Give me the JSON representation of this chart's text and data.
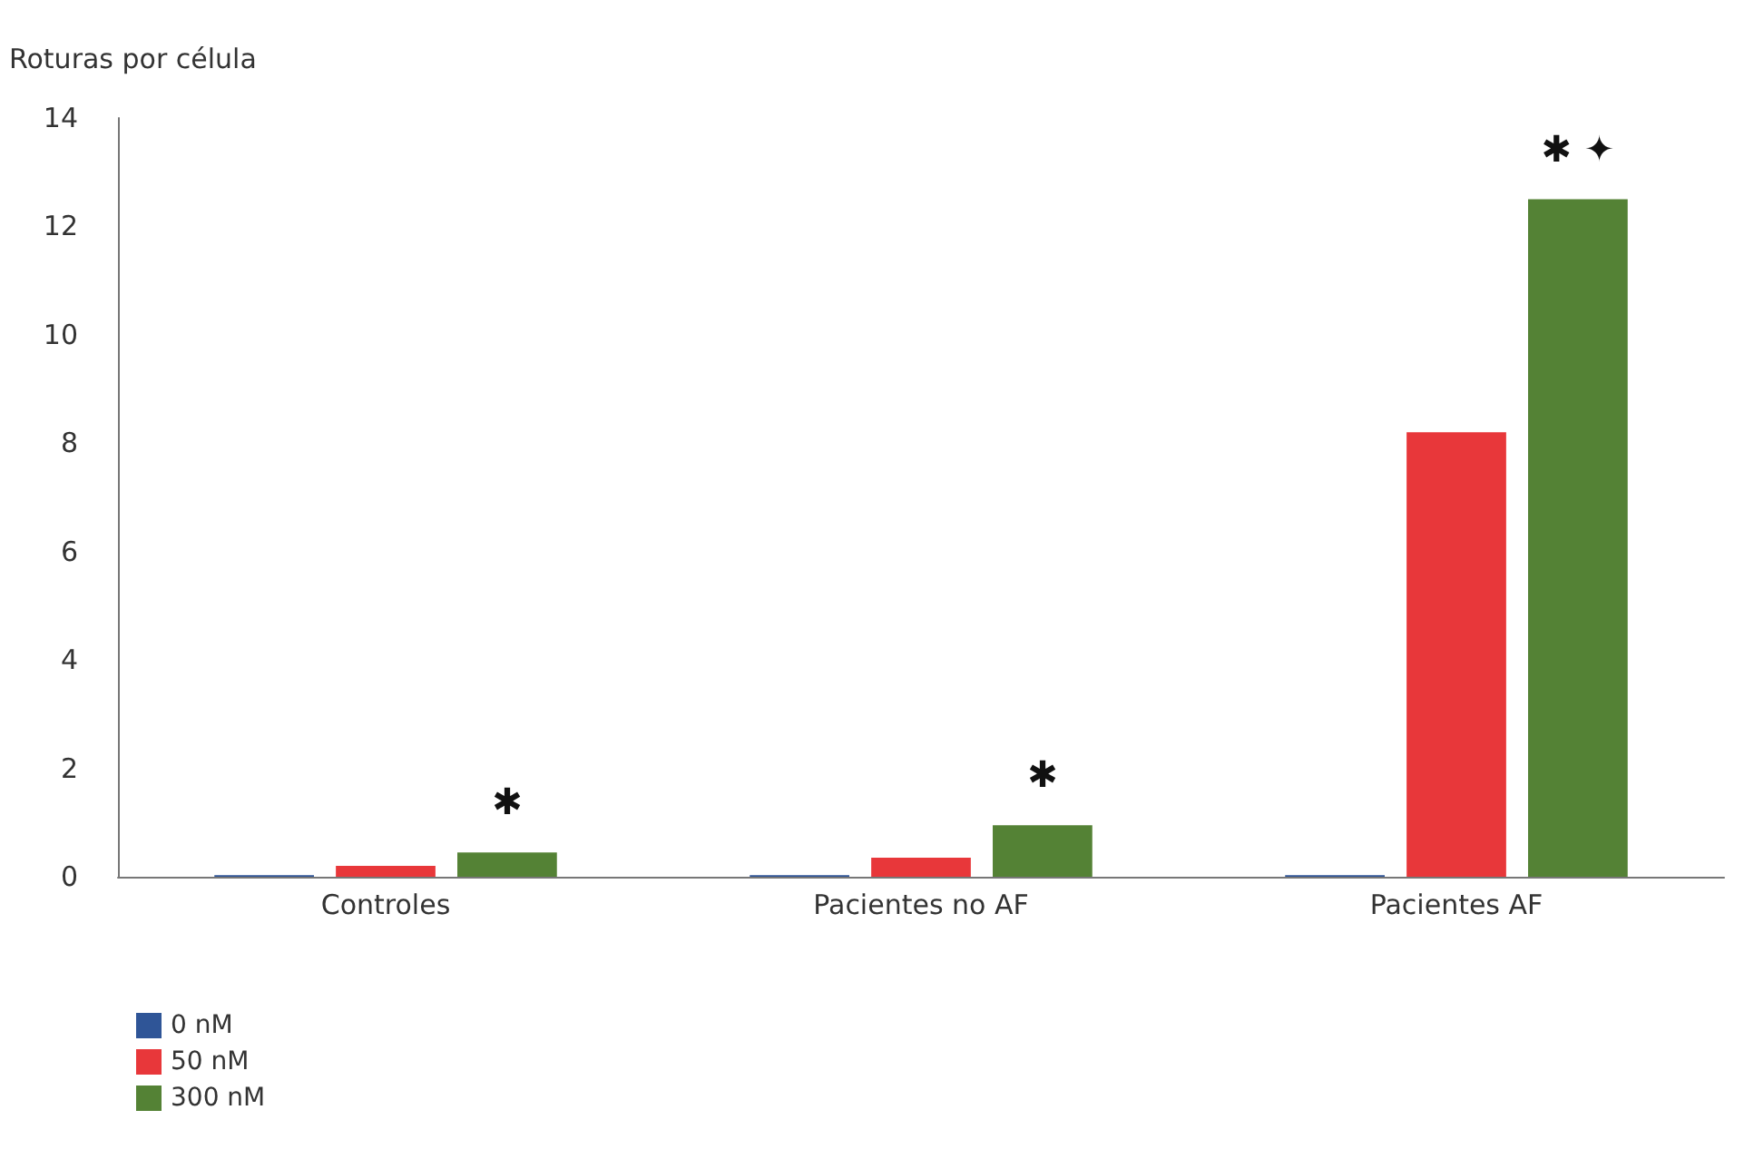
{
  "chart_data": {
    "type": "bar",
    "ylabel": "Roturas por célula",
    "categories": [
      "Controles",
      "Pacientes no AF",
      "Pacientes AF"
    ],
    "series": [
      {
        "name": "0 nM",
        "color": "#2f5597",
        "values": [
          0.03,
          0.03,
          0.03
        ]
      },
      {
        "name": "50 nM",
        "color": "#e8373a",
        "values": [
          0.2,
          0.35,
          8.2
        ]
      },
      {
        "name": "300 nM",
        "color": "#548235",
        "values": [
          0.45,
          0.95,
          12.5
        ]
      }
    ],
    "ylim": [
      0,
      14
    ],
    "yticks": [
      0,
      2,
      4,
      6,
      8,
      10,
      12,
      14
    ],
    "grid": false,
    "legend": "bottom left",
    "annotations": [
      "✱",
      "✱",
      "✱ ✦"
    ]
  }
}
